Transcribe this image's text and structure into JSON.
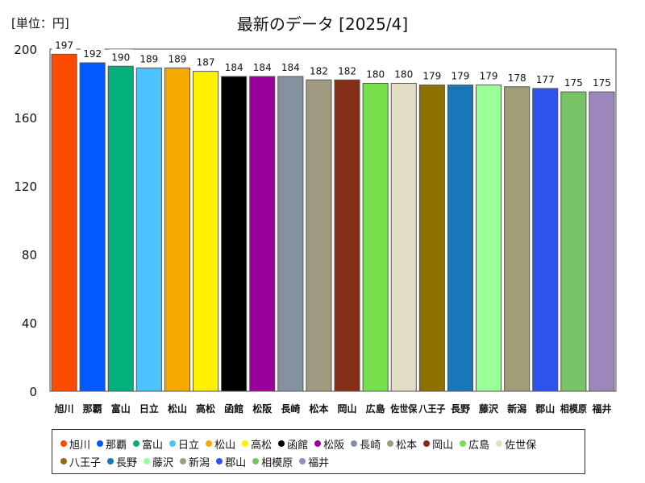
{
  "unit_label": "[単位：円]",
  "chart_data": {
    "type": "bar",
    "title": "最新のデータ [2025/4]",
    "xlabel": "",
    "ylabel": "",
    "ylim": [
      0,
      200
    ],
    "yticks": [
      0,
      40,
      80,
      120,
      160,
      200
    ],
    "grid": false,
    "legend_position": "bottom",
    "categories": [
      "旭川",
      "那覇",
      "富山",
      "日立",
      "松山",
      "高松",
      "函館",
      "松阪",
      "長崎",
      "松本",
      "岡山",
      "広島",
      "佐世保",
      "八王子",
      "長野",
      "藤沢",
      "新潟",
      "郡山",
      "相模原",
      "福井"
    ],
    "values": [
      197,
      192,
      190,
      189,
      189,
      187,
      184,
      184,
      184,
      182,
      182,
      180,
      180,
      179,
      179,
      179,
      178,
      177,
      175,
      175
    ],
    "colors": [
      "#ff4b00",
      "#005aff",
      "#03af7a",
      "#4dc4ff",
      "#f6aa00",
      "#fff100",
      "#000000",
      "#990099",
      "#84919e",
      "#a09b80",
      "#852e17",
      "#77e14d",
      "#e2dec5",
      "#8c7000",
      "#1876b9",
      "#99ff99",
      "#a29d78",
      "#2e54ee",
      "#77c365",
      "#9c88bb"
    ]
  }
}
